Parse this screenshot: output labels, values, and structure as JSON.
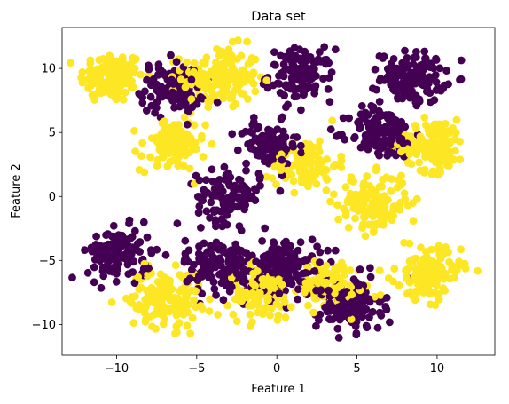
{
  "chart_data": {
    "type": "scatter",
    "title": "Data set",
    "xlabel": "Feature 1",
    "ylabel": "Feature 2",
    "xlim": [
      -13.4,
      13.6
    ],
    "ylim": [
      -12.4,
      13.2
    ],
    "xticks": [
      -10,
      -5,
      0,
      5,
      10
    ],
    "yticks": [
      -10,
      -5,
      0,
      5,
      10
    ],
    "xtick_labels": [
      "−10",
      "−5",
      "0",
      "5",
      "10"
    ],
    "ytick_labels": [
      "−10",
      "−5",
      "0",
      "5",
      "10"
    ],
    "grid": false,
    "legend": "none",
    "class_colors": {
      "0": "#440154",
      "1": "#fde725"
    },
    "clusters": [
      {
        "class": 1,
        "center": [
          -10.3,
          9.3
        ],
        "spread": 1.0,
        "count": 130
      },
      {
        "class": 1,
        "center": [
          -3.5,
          9.3
        ],
        "spread": 1.2,
        "count": 170
      },
      {
        "class": 0,
        "center": [
          -6.5,
          8.5
        ],
        "spread": 1.0,
        "count": 110
      },
      {
        "class": 0,
        "center": [
          1.5,
          9.5
        ],
        "spread": 1.0,
        "count": 120
      },
      {
        "class": 0,
        "center": [
          8.5,
          9.3
        ],
        "spread": 1.0,
        "count": 130
      },
      {
        "class": 1,
        "center": [
          -6.5,
          4.0
        ],
        "spread": 1.0,
        "count": 110
      },
      {
        "class": 0,
        "center": [
          -0.5,
          4.0
        ],
        "spread": 0.9,
        "count": 90
      },
      {
        "class": 1,
        "center": [
          1.8,
          2.5
        ],
        "spread": 1.0,
        "count": 100
      },
      {
        "class": 0,
        "center": [
          6.5,
          5.0
        ],
        "spread": 1.0,
        "count": 130
      },
      {
        "class": 1,
        "center": [
          9.8,
          4.0
        ],
        "spread": 1.0,
        "count": 130
      },
      {
        "class": 0,
        "center": [
          -3.0,
          0.0
        ],
        "spread": 1.0,
        "count": 110
      },
      {
        "class": 1,
        "center": [
          6.0,
          -0.5
        ],
        "spread": 1.1,
        "count": 150
      },
      {
        "class": 0,
        "center": [
          -9.8,
          -4.5
        ],
        "spread": 1.0,
        "count": 130
      },
      {
        "class": 1,
        "center": [
          -7.0,
          -8.0
        ],
        "spread": 1.1,
        "count": 150
      },
      {
        "class": 0,
        "center": [
          -3.5,
          -5.5
        ],
        "spread": 1.1,
        "count": 150
      },
      {
        "class": 0,
        "center": [
          0.5,
          -5.5
        ],
        "spread": 1.1,
        "count": 150
      },
      {
        "class": 1,
        "center": [
          -1.0,
          -7.5
        ],
        "spread": 1.0,
        "count": 110
      },
      {
        "class": 1,
        "center": [
          3.5,
          -7.0
        ],
        "spread": 1.0,
        "count": 110
      },
      {
        "class": 0,
        "center": [
          4.5,
          -8.5
        ],
        "spread": 1.0,
        "count": 150
      },
      {
        "class": 1,
        "center": [
          9.5,
          -6.0
        ],
        "spread": 1.0,
        "count": 140
      }
    ]
  }
}
